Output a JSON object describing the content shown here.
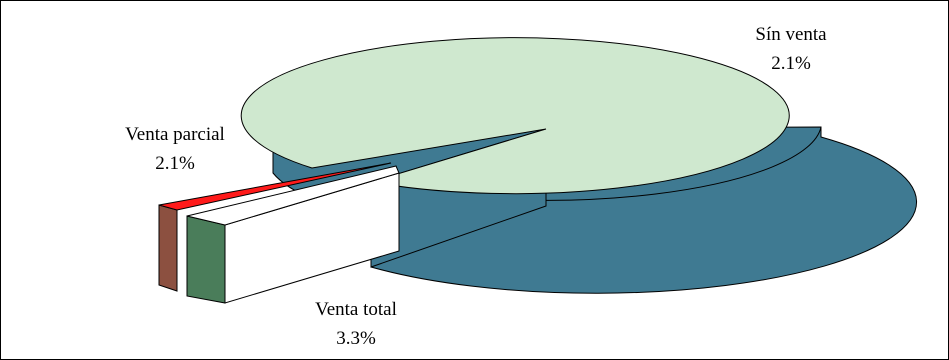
{
  "chart_data": {
    "type": "pie",
    "title": "",
    "slices": [
      {
        "label": "Sín venta",
        "value_label": "2.1%",
        "color_top": "#cfe8cf",
        "color_side": "#3f7a92",
        "exploded": false
      },
      {
        "label": "Venta parcial",
        "value_label": "2.1%",
        "color_top": "#ff1a1a",
        "color_side": "#8c5040",
        "exploded": true
      },
      {
        "label": "Venta total",
        "value_label": "3.3%",
        "color_top": "#ffffff",
        "color_side": "#4a7d5a",
        "exploded": true
      }
    ],
    "view": "3d",
    "legend": "none"
  }
}
